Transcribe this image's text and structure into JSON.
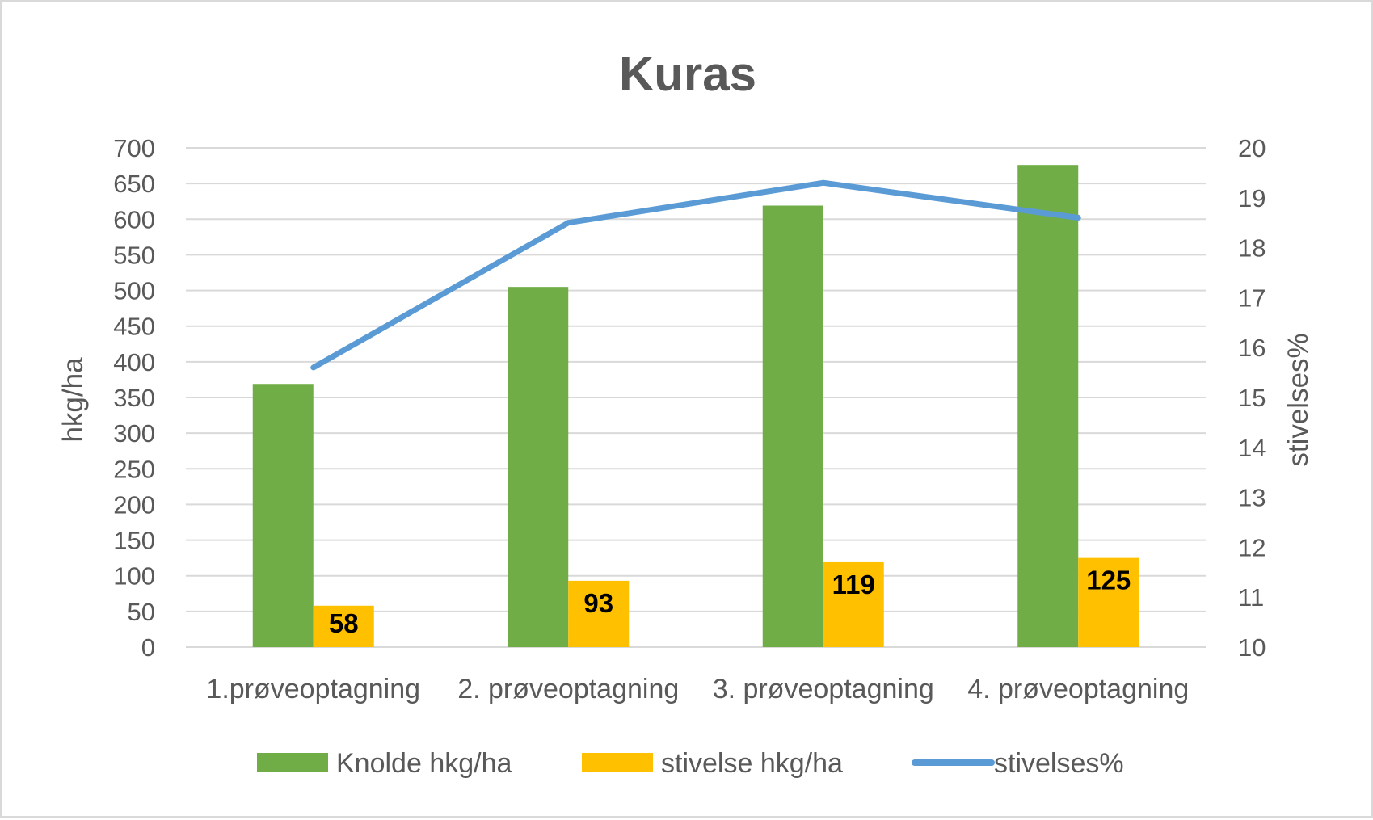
{
  "chart_data": {
    "type": "bar",
    "title": "Kuras",
    "categories": [
      "1.prøveoptagning",
      "2. prøveoptagning",
      "3. prøveoptagning",
      "4. prøveoptagning"
    ],
    "series": [
      {
        "name": "Knolde hkg/ha",
        "type": "bar",
        "axis": "left",
        "color": "#70ad47",
        "values": [
          369,
          505,
          619,
          676
        ],
        "data_labels": false
      },
      {
        "name": "stivelse hkg/ha",
        "type": "bar",
        "axis": "left",
        "color": "#ffc000",
        "values": [
          58,
          93,
          119,
          125
        ],
        "data_labels": true
      },
      {
        "name": "stivelses%",
        "type": "line",
        "axis": "right",
        "color": "#5b9bd5",
        "values": [
          15.6,
          18.5,
          19.3,
          18.6
        ],
        "data_labels": false
      }
    ],
    "ylabel": "hkg/ha",
    "ylim": [
      0,
      700
    ],
    "yticks": [
      "0",
      "50",
      "100",
      "150",
      "200",
      "250",
      "300",
      "350",
      "400",
      "450",
      "500",
      "550",
      "600",
      "650",
      "700"
    ],
    "y2label": "stivelses%",
    "y2lim": [
      10,
      20
    ],
    "y2ticks": [
      "10",
      "11",
      "12",
      "13",
      "14",
      "15",
      "16",
      "17",
      "18",
      "19",
      "20"
    ],
    "grid": true,
    "legend_position": "bottom"
  }
}
